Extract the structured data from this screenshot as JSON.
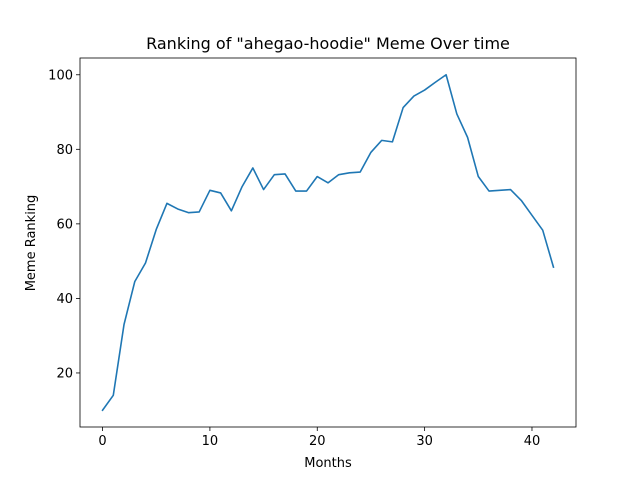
{
  "chart_data": {
    "type": "line",
    "title": "Ranking of \"ahegao-hoodie\" Meme Over time",
    "xlabel": "Months",
    "ylabel": "Meme Ranking",
    "xlim": [
      -2.1,
      44.1
    ],
    "ylim": [
      5.5,
      104.5
    ],
    "xticks": [
      0,
      10,
      20,
      30,
      40
    ],
    "yticks": [
      20,
      40,
      60,
      80,
      100
    ],
    "grid": false,
    "legend": "none",
    "line_color": "#1f77b4",
    "series": [
      {
        "x": [
          0,
          1,
          2,
          3,
          4,
          5,
          6,
          7,
          8,
          9,
          10,
          11,
          12,
          13,
          14,
          15,
          16,
          17,
          18,
          19,
          20,
          21,
          22,
          23,
          24,
          25,
          26,
          27,
          28,
          29,
          30,
          31,
          32,
          33,
          34,
          35,
          36,
          37,
          38,
          39,
          40,
          41,
          42
        ],
        "values": [
          10,
          14,
          33,
          44.5,
          49.5,
          58.5,
          65.5,
          64,
          63,
          63.2,
          69,
          68.3,
          63.5,
          70,
          75,
          69.2,
          73.2,
          73.4,
          68.8,
          68.8,
          72.7,
          71,
          73.2,
          73.7,
          73.9,
          79.2,
          82.4,
          82,
          91.2,
          94.3,
          95.9,
          98,
          100,
          89.5,
          83.2,
          72.7,
          68.8,
          69,
          69.2,
          66.3,
          62.3,
          58.3,
          48.4
        ]
      }
    ]
  }
}
